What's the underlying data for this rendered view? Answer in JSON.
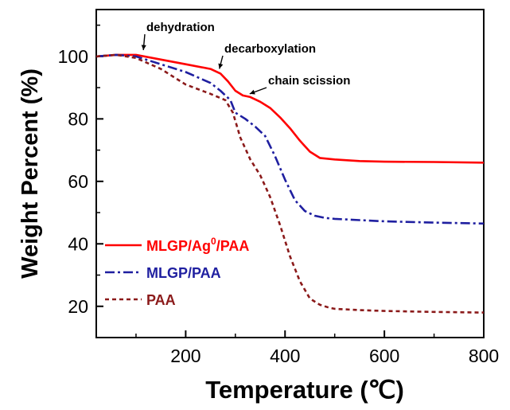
{
  "chart_data": {
    "type": "line",
    "title": "",
    "xlabel": "Temperature (℃)",
    "ylabel": "Weight Percent (%)",
    "xlim": [
      20,
      800
    ],
    "ylim": [
      10,
      115
    ],
    "x_major_ticks": [
      200,
      400,
      600,
      800
    ],
    "x_minor_ticks": [
      100,
      300,
      500,
      700
    ],
    "y_major_ticks": [
      20,
      40,
      60,
      80,
      100
    ],
    "y_minor_ticks": [
      30,
      50,
      70,
      90,
      110
    ],
    "legend_position": "lower-left",
    "series": [
      {
        "name": "MLGP/Ag0/PAA",
        "legend_base": "MLGP/Ag",
        "legend_sup": "0",
        "legend_suffix": "/PAA",
        "color": "#ff0000",
        "style": "solid",
        "x": [
          20,
          60,
          100,
          150,
          200,
          250,
          270,
          285,
          300,
          315,
          330,
          350,
          370,
          390,
          410,
          430,
          450,
          470,
          500,
          550,
          600,
          700,
          800
        ],
        "y": [
          100,
          100.5,
          100.5,
          99,
          97.5,
          96,
          94.5,
          92,
          89,
          87.5,
          87,
          85.5,
          83.5,
          80.5,
          77,
          73,
          69.5,
          67.5,
          67,
          66.5,
          66.3,
          66.2,
          66
        ]
      },
      {
        "name": "MLGP/PAA",
        "legend_base": "MLGP/PAA",
        "legend_sup": "",
        "legend_suffix": "",
        "color": "#1f1fa0",
        "style": "dashdot",
        "x": [
          20,
          60,
          100,
          150,
          200,
          250,
          270,
          290,
          300,
          320,
          340,
          360,
          380,
          400,
          420,
          440,
          460,
          480,
          500,
          550,
          600,
          700,
          800
        ],
        "y": [
          100,
          100.5,
          100,
          97.5,
          95,
          91.5,
          89,
          86,
          82,
          80,
          77.5,
          74.5,
          68,
          60.5,
          54,
          50.5,
          49,
          48.3,
          48,
          47.6,
          47.2,
          46.8,
          46.5
        ]
      },
      {
        "name": "PAA",
        "legend_base": "PAA",
        "legend_sup": "",
        "legend_suffix": "",
        "color": "#8b1a1a",
        "style": "dashed",
        "x": [
          20,
          60,
          100,
          150,
          200,
          250,
          280,
          295,
          310,
          330,
          350,
          370,
          390,
          410,
          430,
          450,
          470,
          490,
          500,
          550,
          600,
          700,
          800
        ],
        "y": [
          100,
          100.5,
          99.5,
          96,
          91,
          88,
          86,
          82,
          74,
          67,
          62,
          55,
          46,
          36,
          28,
          22.5,
          20.5,
          19.5,
          19.2,
          18.8,
          18.5,
          18.2,
          18
        ]
      }
    ],
    "annotations": [
      {
        "text": "dehydration",
        "target_x": 110,
        "target_y": 101
      },
      {
        "text": "decarboxylation",
        "target_x": 263,
        "target_y": 95
      },
      {
        "text": "chain scission",
        "target_x": 324,
        "target_y": 87
      }
    ]
  }
}
